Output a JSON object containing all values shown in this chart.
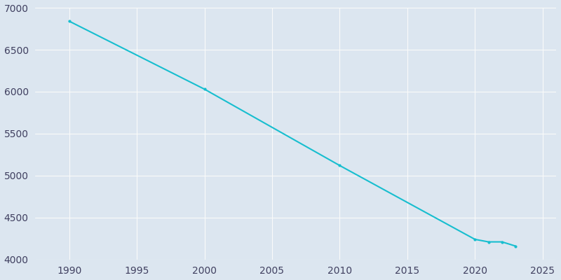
{
  "years": [
    1990,
    2000,
    2010,
    2020,
    2021,
    2022,
    2023
  ],
  "population": [
    6840,
    6030,
    5120,
    4240,
    4210,
    4210,
    4160
  ],
  "line_color": "#17BECF",
  "marker": "o",
  "marker_size": 3,
  "marker_color": "#17BECF",
  "axes_background": "#DCE6F0",
  "figure_background": "#DCE6F0",
  "grid_color": "#FAFAFA",
  "tick_color": "#404060",
  "xlim": [
    1987.5,
    2026
  ],
  "ylim": [
    4000,
    7000
  ],
  "xticks": [
    1990,
    1995,
    2000,
    2005,
    2010,
    2015,
    2020,
    2025
  ],
  "yticks": [
    4000,
    4500,
    5000,
    5500,
    6000,
    6500,
    7000
  ],
  "figsize": [
    8.0,
    4.0
  ],
  "dpi": 100
}
